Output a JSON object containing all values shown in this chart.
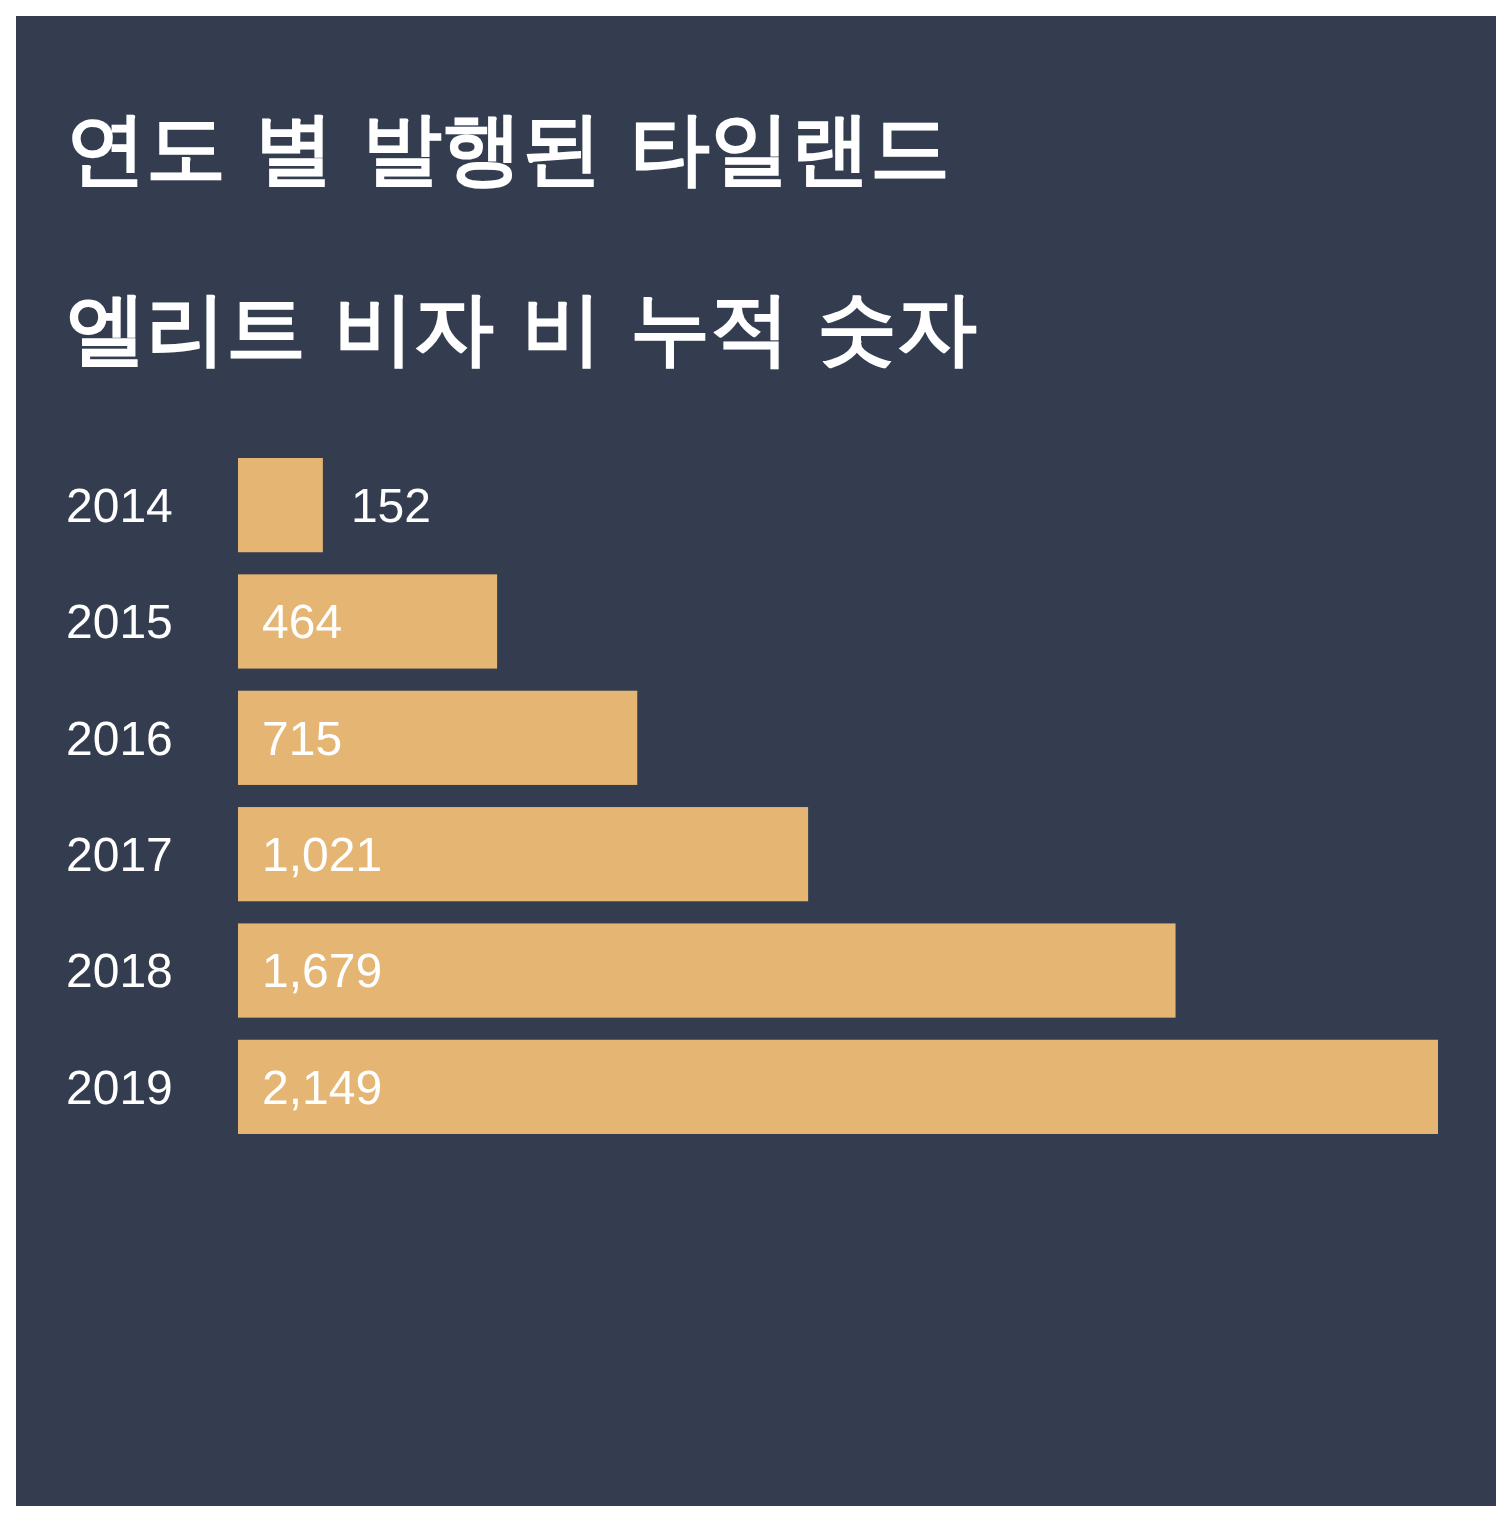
{
  "chart_data": {
    "type": "bar",
    "orientation": "horizontal",
    "title": "연도 별 발행된 타일랜드 엘리트 비자 비 누적 숫자",
    "categories": [
      "2014",
      "2015",
      "2016",
      "2017",
      "2018",
      "2019"
    ],
    "values": [
      152,
      464,
      715,
      1021,
      1679,
      2149
    ],
    "value_labels": [
      "152",
      "464",
      "715",
      "1,021",
      "1,679",
      "2,149"
    ],
    "color": "#e5b574"
  }
}
